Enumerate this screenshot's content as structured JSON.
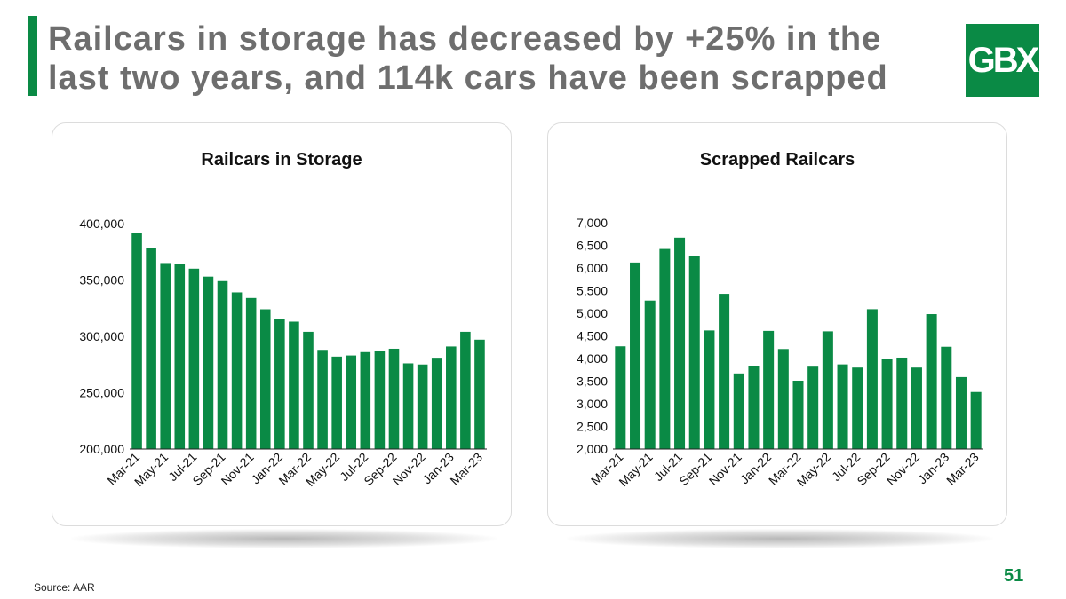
{
  "header": {
    "title": "Railcars in storage has decreased by +25% in the last two years, and 114k cars have been scrapped",
    "logo_text": "GBX"
  },
  "colors": {
    "accent": "#0a8a45",
    "bar": "#0a8a45",
    "title_text": "#6e6e6e"
  },
  "chart_data": [
    {
      "type": "bar",
      "title": "Railcars in Storage",
      "xlabel": "",
      "ylabel": "",
      "ylim": [
        200000,
        400000
      ],
      "yticks": [
        200000,
        250000,
        300000,
        350000,
        400000
      ],
      "ytick_labels": [
        "200,000",
        "250,000",
        "300,000",
        "350,000",
        "400,000"
      ],
      "categories": [
        "Mar-21",
        "Apr-21",
        "May-21",
        "Jun-21",
        "Jul-21",
        "Aug-21",
        "Sep-21",
        "Oct-21",
        "Nov-21",
        "Dec-21",
        "Jan-22",
        "Feb-22",
        "Mar-22",
        "Apr-22",
        "May-22",
        "Jun-22",
        "Jul-22",
        "Aug-22",
        "Sep-22",
        "Oct-22",
        "Nov-22",
        "Dec-22",
        "Jan-23",
        "Feb-23",
        "Mar-23"
      ],
      "xtick_labels": [
        "Mar-21",
        "",
        "May-21",
        "",
        "Jul-21",
        "",
        "Sep-21",
        "",
        "Nov-21",
        "",
        "Jan-22",
        "",
        "Mar-22",
        "",
        "May-22",
        "",
        "Jul-22",
        "",
        "Sep-22",
        "",
        "Nov-22",
        "",
        "Jan-23",
        "",
        "Mar-23"
      ],
      "values": [
        392000,
        378000,
        365000,
        364000,
        360000,
        353000,
        349000,
        339000,
        334000,
        324000,
        315000,
        313000,
        304000,
        288000,
        282000,
        283000,
        286000,
        287000,
        289000,
        276000,
        275000,
        281000,
        291000,
        304000,
        297000
      ]
    },
    {
      "type": "bar",
      "title": "Scrapped Railcars",
      "xlabel": "",
      "ylabel": "",
      "ylim": [
        2000,
        7000
      ],
      "yticks": [
        2000,
        2500,
        3000,
        3500,
        4000,
        4500,
        5000,
        5500,
        6000,
        6500,
        7000
      ],
      "ytick_labels": [
        "2,000",
        "2,500",
        "3,000",
        "3,500",
        "4,000",
        "4,500",
        "5,000",
        "5,500",
        "6,000",
        "6,500",
        "7,000"
      ],
      "categories": [
        "Mar-21",
        "Apr-21",
        "May-21",
        "Jun-21",
        "Jul-21",
        "Aug-21",
        "Sep-21",
        "Oct-21",
        "Nov-21",
        "Dec-21",
        "Jan-22",
        "Feb-22",
        "Mar-22",
        "Apr-22",
        "May-22",
        "Jun-22",
        "Jul-22",
        "Aug-22",
        "Sep-22",
        "Oct-22",
        "Nov-22",
        "Dec-22",
        "Jan-23",
        "Feb-23",
        "Mar-23"
      ],
      "xtick_labels": [
        "Mar-21",
        "",
        "May-21",
        "",
        "Jul-21",
        "",
        "Sep-21",
        "",
        "Nov-21",
        "",
        "Jan-22",
        "",
        "Mar-22",
        "",
        "May-22",
        "",
        "Jul-22",
        "",
        "Sep-22",
        "",
        "Nov-22",
        "",
        "Jan-23",
        "",
        "Mar-23"
      ],
      "values": [
        4270,
        6120,
        5280,
        6420,
        6670,
        6270,
        4620,
        5430,
        3670,
        3830,
        4610,
        4210,
        3510,
        3820,
        4600,
        3870,
        3800,
        5090,
        4000,
        4020,
        3800,
        4980,
        4260,
        3590,
        3260
      ]
    }
  ],
  "footer": {
    "source": "Source: AAR",
    "page_number": "51"
  }
}
